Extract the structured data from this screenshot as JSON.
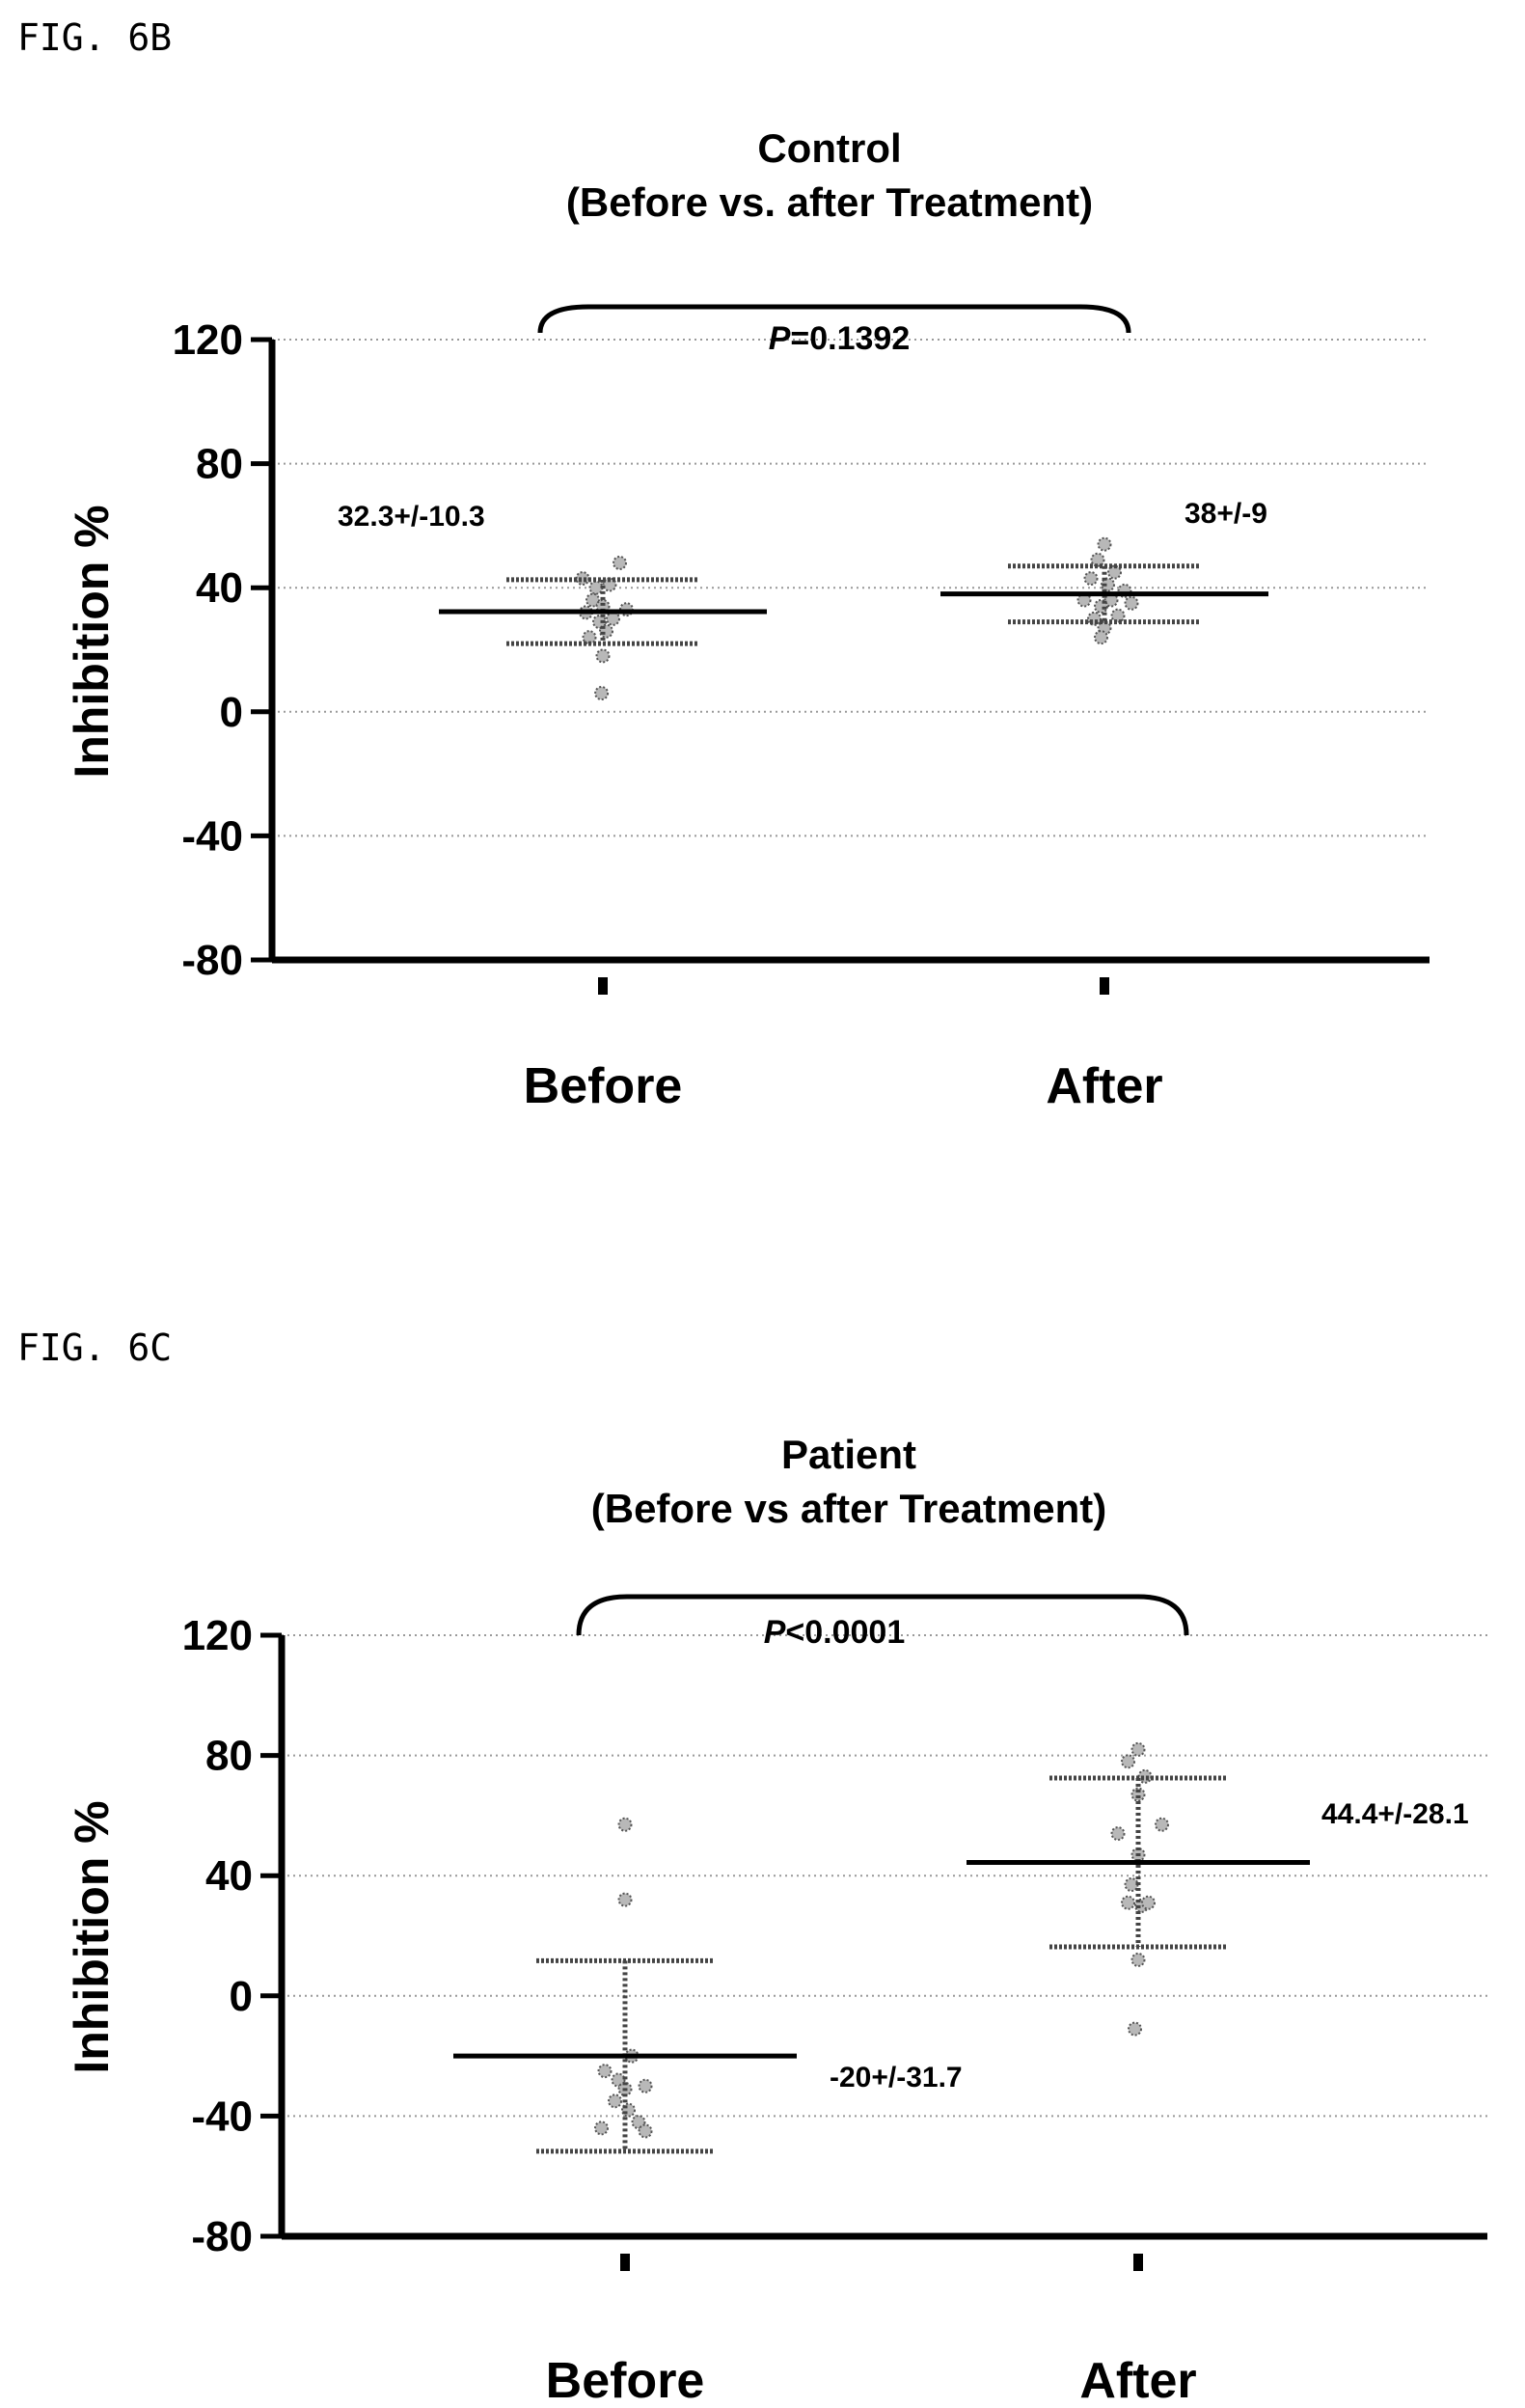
{
  "chart_data": [
    {
      "figure_label": "FIG. 6B",
      "type": "scatter",
      "title": "Control",
      "subtitle": "(Before vs. after Treatment)",
      "xlabel": "",
      "ylabel": "Inhibition %",
      "ylim": [
        -80,
        120
      ],
      "yticks": [
        "120",
        "80",
        "40",
        "0",
        "-40",
        "-80"
      ],
      "ytick_values": [
        120,
        80,
        40,
        0,
        -40,
        -80
      ],
      "grid": "horizontal dotted",
      "categories": [
        "Before",
        "After"
      ],
      "p_value": {
        "label": "P",
        "text": "=0.1392"
      },
      "series": [
        {
          "category": "Before",
          "mean": 32.3,
          "sd": 10.3,
          "annotation": "32.3+/-10.3",
          "points": [
            {
              "dx": -0.3,
              "y": 43
            },
            {
              "dx": -0.1,
              "y": 40
            },
            {
              "dx": 0.25,
              "y": 48
            },
            {
              "dx": 0.1,
              "y": 41
            },
            {
              "dx": -0.15,
              "y": 36
            },
            {
              "dx": 0.0,
              "y": 34
            },
            {
              "dx": -0.25,
              "y": 32
            },
            {
              "dx": 0.15,
              "y": 30
            },
            {
              "dx": 0.35,
              "y": 33
            },
            {
              "dx": -0.05,
              "y": 29
            },
            {
              "dx": 0.05,
              "y": 26
            },
            {
              "dx": -0.2,
              "y": 24
            },
            {
              "dx": 0.0,
              "y": 18
            },
            {
              "dx": -0.02,
              "y": 6
            }
          ]
        },
        {
          "category": "After",
          "mean": 38,
          "sd": 9,
          "annotation": "38+/-9",
          "points": [
            {
              "dx": 0.0,
              "y": 54
            },
            {
              "dx": -0.1,
              "y": 49
            },
            {
              "dx": 0.15,
              "y": 45
            },
            {
              "dx": -0.2,
              "y": 43
            },
            {
              "dx": 0.05,
              "y": 41
            },
            {
              "dx": 0.3,
              "y": 39
            },
            {
              "dx": -0.3,
              "y": 36
            },
            {
              "dx": 0.1,
              "y": 36
            },
            {
              "dx": -0.05,
              "y": 34
            },
            {
              "dx": 0.4,
              "y": 35
            },
            {
              "dx": 0.2,
              "y": 31
            },
            {
              "dx": -0.15,
              "y": 30
            },
            {
              "dx": 0.0,
              "y": 27
            },
            {
              "dx": -0.05,
              "y": 24
            }
          ]
        }
      ]
    },
    {
      "figure_label": "FIG. 6C",
      "type": "scatter",
      "title": "Patient",
      "subtitle": "(Before vs after Treatment)",
      "xlabel": "",
      "ylabel": "Inhibition %",
      "ylim": [
        -80,
        120
      ],
      "yticks": [
        "120",
        "80",
        "40",
        "0",
        "-40",
        "-80"
      ],
      "ytick_values": [
        120,
        80,
        40,
        0,
        -40,
        -80
      ],
      "grid": "horizontal dotted",
      "categories": [
        "Before",
        "After"
      ],
      "p_value": {
        "label": "P",
        "text": "<0.0001"
      },
      "series": [
        {
          "category": "Before",
          "mean": -20,
          "sd": 31.7,
          "annotation": "-20+/-31.7",
          "points": [
            {
              "dx": 0.0,
              "y": 57
            },
            {
              "dx": 0.0,
              "y": 32
            },
            {
              "dx": 0.1,
              "y": -20
            },
            {
              "dx": -0.3,
              "y": -25
            },
            {
              "dx": -0.1,
              "y": -28
            },
            {
              "dx": 0.0,
              "y": -31
            },
            {
              "dx": 0.3,
              "y": -30
            },
            {
              "dx": -0.15,
              "y": -35
            },
            {
              "dx": 0.05,
              "y": -38
            },
            {
              "dx": 0.2,
              "y": -42
            },
            {
              "dx": -0.35,
              "y": -44
            },
            {
              "dx": 0.3,
              "y": -45
            }
          ]
        },
        {
          "category": "After",
          "mean": 44.4,
          "sd": 28.1,
          "annotation": "44.4+/-28.1",
          "points": [
            {
              "dx": 0.0,
              "y": 82
            },
            {
              "dx": -0.15,
              "y": 78
            },
            {
              "dx": 0.1,
              "y": 73
            },
            {
              "dx": 0.0,
              "y": 67
            },
            {
              "dx": 0.35,
              "y": 57
            },
            {
              "dx": -0.3,
              "y": 54
            },
            {
              "dx": 0.0,
              "y": 47
            },
            {
              "dx": -0.1,
              "y": 37
            },
            {
              "dx": 0.05,
              "y": 30
            },
            {
              "dx": -0.15,
              "y": 31
            },
            {
              "dx": 0.15,
              "y": 31
            },
            {
              "dx": 0.0,
              "y": 12
            },
            {
              "dx": -0.05,
              "y": -11
            }
          ]
        }
      ]
    }
  ]
}
